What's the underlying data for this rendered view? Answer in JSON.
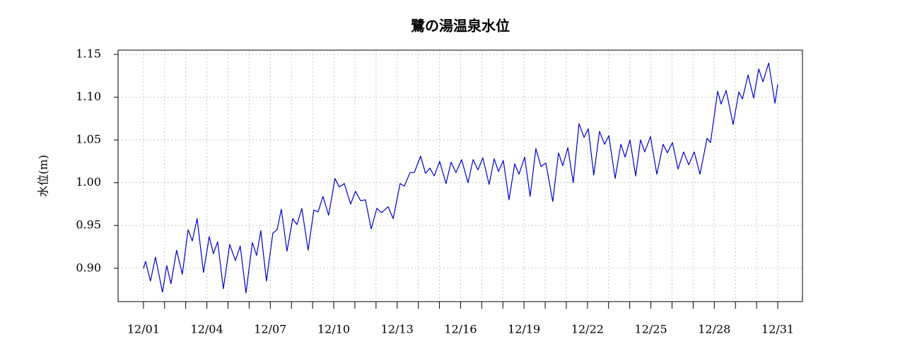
{
  "chart_data": {
    "type": "line",
    "title": "鷺の湯温泉水位",
    "ylabel": "水位(m)",
    "x": [
      1.0,
      1.1,
      1.33,
      1.57,
      1.9,
      2.1,
      2.3,
      2.57,
      2.84,
      3.11,
      3.31,
      3.54,
      3.84,
      4.11,
      4.31,
      4.51,
      4.78,
      5.08,
      5.35,
      5.58,
      5.85,
      6.15,
      6.35,
      6.55,
      6.82,
      7.12,
      7.32,
      7.52,
      7.79,
      8.06,
      8.26,
      8.49,
      8.79,
      9.06,
      9.26,
      9.49,
      9.76,
      10.06,
      10.26,
      10.5,
      10.8,
      11.03,
      11.27,
      11.5,
      11.77,
      12.04,
      12.27,
      12.57,
      12.81,
      13.14,
      13.34,
      13.61,
      13.81,
      14.11,
      14.34,
      14.55,
      14.75,
      15.01,
      15.31,
      15.55,
      15.78,
      16.05,
      16.35,
      16.59,
      16.82,
      17.05,
      17.35,
      17.59,
      17.79,
      18.02,
      18.29,
      18.56,
      18.76,
      19.03,
      19.29,
      19.56,
      19.8,
      20.03,
      20.36,
      20.63,
      20.83,
      21.07,
      21.33,
      21.6,
      21.84,
      22.04,
      22.3,
      22.57,
      22.81,
      23.01,
      23.31,
      23.58,
      23.78,
      24.01,
      24.28,
      24.51,
      24.71,
      24.98,
      25.28,
      25.58,
      25.78,
      26.02,
      26.28,
      26.55,
      26.79,
      27.05,
      27.32,
      27.66,
      27.82,
      28.16,
      28.32,
      28.56,
      28.89,
      29.16,
      29.33,
      29.6,
      29.86,
      30.1,
      30.3,
      30.57,
      30.87,
      31.0
    ],
    "series": [
      {
        "color": "#0000cc",
        "values": [
          0.9,
          0.908,
          0.885,
          0.913,
          0.872,
          0.903,
          0.882,
          0.921,
          0.893,
          0.945,
          0.932,
          0.958,
          0.895,
          0.937,
          0.917,
          0.931,
          0.876,
          0.928,
          0.909,
          0.926,
          0.871,
          0.93,
          0.915,
          0.944,
          0.885,
          0.941,
          0.945,
          0.969,
          0.92,
          0.958,
          0.951,
          0.97,
          0.921,
          0.968,
          0.966,
          0.984,
          0.962,
          1.005,
          0.995,
          0.999,
          0.975,
          0.99,
          0.979,
          0.98,
          0.946,
          0.97,
          0.965,
          0.972,
          0.958,
          0.999,
          0.996,
          1.012,
          1.012,
          1.031,
          1.011,
          1.017,
          1.008,
          1.025,
          0.999,
          1.024,
          1.012,
          1.027,
          1.0,
          1.027,
          1.015,
          1.029,
          0.998,
          1.028,
          1.013,
          1.026,
          0.98,
          1.022,
          1.01,
          1.03,
          0.984,
          1.04,
          1.019,
          1.023,
          0.978,
          1.035,
          1.02,
          1.041,
          1.0,
          1.069,
          1.053,
          1.063,
          1.009,
          1.06,
          1.045,
          1.055,
          1.005,
          1.045,
          1.03,
          1.05,
          1.008,
          1.05,
          1.036,
          1.054,
          1.01,
          1.045,
          1.035,
          1.047,
          1.016,
          1.036,
          1.021,
          1.036,
          1.01,
          1.052,
          1.047,
          1.107,
          1.092,
          1.108,
          1.068,
          1.106,
          1.098,
          1.126,
          1.099,
          1.133,
          1.118,
          1.14,
          1.093,
          1.115
        ]
      }
    ],
    "xlim": [
      -0.2,
      32.17
    ],
    "ylim": [
      0.861,
      1.155
    ],
    "xticks": [
      {
        "value": 1,
        "label": "12/01"
      },
      {
        "value": 4,
        "label": "12/04"
      },
      {
        "value": 7,
        "label": "12/07"
      },
      {
        "value": 10,
        "label": "12/10"
      },
      {
        "value": 13,
        "label": "12/13"
      },
      {
        "value": 16,
        "label": "12/16"
      },
      {
        "value": 19,
        "label": "12/19"
      },
      {
        "value": 22,
        "label": "12/22"
      },
      {
        "value": 25,
        "label": "12/25"
      },
      {
        "value": 28,
        "label": "12/28"
      },
      {
        "value": 31,
        "label": "12/31"
      }
    ],
    "x_minor_ticks": [
      1,
      2,
      3,
      4,
      5,
      6,
      7,
      8,
      9,
      10,
      11,
      12,
      13,
      14,
      15,
      16,
      17,
      18,
      19,
      20,
      21,
      22,
      23,
      24,
      25,
      26,
      27,
      28,
      29,
      30,
      31
    ],
    "yticks": [
      {
        "value": 0.9,
        "label": "0.90"
      },
      {
        "value": 0.95,
        "label": "0.95"
      },
      {
        "value": 1.0,
        "label": "1.00"
      },
      {
        "value": 1.05,
        "label": "1.05"
      },
      {
        "value": 1.1,
        "label": "1.10"
      },
      {
        "value": 1.15,
        "label": "1.15"
      }
    ],
    "grid": true
  }
}
